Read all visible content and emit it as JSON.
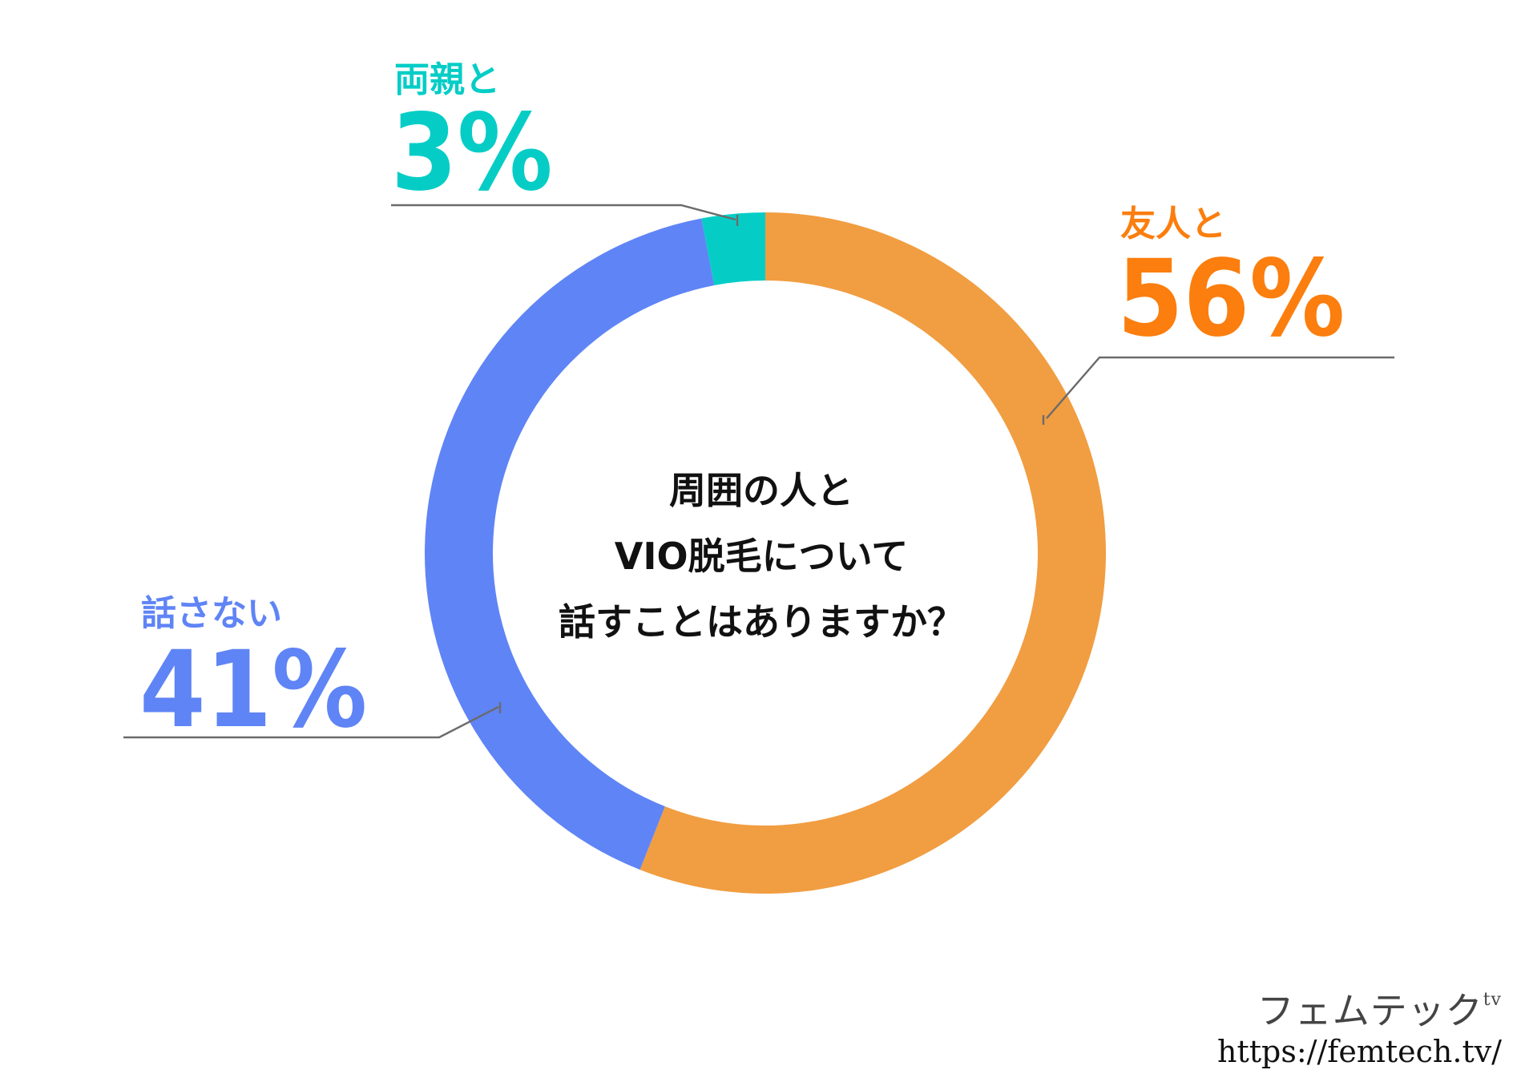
{
  "chart_data": {
    "type": "pie",
    "title": [
      "周囲の人と",
      "VIO脱毛について",
      "話すことはありますか？"
    ],
    "categories": [
      "友人と",
      "話さない",
      "両親と"
    ],
    "values": [
      56,
      41,
      3
    ],
    "value_labels": [
      "56%",
      "41%",
      "3%"
    ],
    "colors": [
      "#f19d41",
      "#5f84f6",
      "#05cdc6"
    ],
    "label_colors": [
      "#fb7e0e",
      "#5f84f6",
      "#05cdc6"
    ],
    "unit": "%",
    "legend": "none"
  },
  "brand": {
    "name": "フェムテック",
    "name_suffix": "tv",
    "url": "https://femtech.tv/"
  }
}
